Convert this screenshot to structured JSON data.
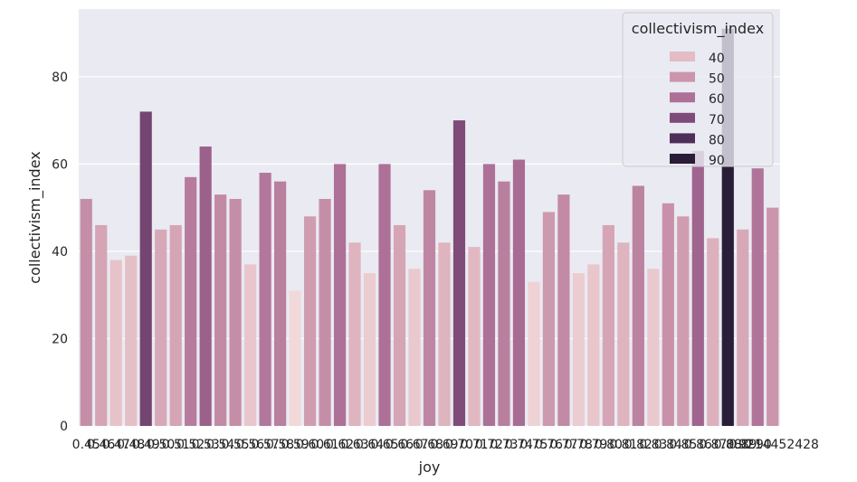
{
  "chart_data": {
    "type": "bar",
    "xlabel": "joy",
    "ylabel": "collectivism_index",
    "ylim": [
      0,
      95.5
    ],
    "yticks": [
      0,
      20,
      40,
      60,
      80
    ],
    "grid": true,
    "legend": {
      "title": "collectivism_index",
      "placement": "top-right",
      "entries": [
        "40",
        "50",
        "60",
        "70",
        "80",
        "90"
      ]
    },
    "colors": {
      "background": "#eaeaf2",
      "grid": "#ffffff",
      "hue_scale": [
        {
          "value": 30,
          "color": "#f2dcdc"
        },
        {
          "value": 40,
          "color": "#e3bcc4"
        },
        {
          "value": 50,
          "color": "#cb95ab"
        },
        {
          "value": 60,
          "color": "#ad7097"
        },
        {
          "value": 70,
          "color": "#7f4b78"
        },
        {
          "value": 80,
          "color": "#4d2f58"
        },
        {
          "value": 90,
          "color": "#2a1d38"
        }
      ]
    },
    "values": [
      52,
      46,
      38,
      39,
      72,
      45,
      46,
      57,
      64,
      53,
      52,
      37,
      58,
      56,
      31,
      48,
      52,
      60,
      42,
      35,
      60,
      46,
      36,
      54,
      42,
      70,
      41,
      60,
      56,
      61,
      33,
      49,
      53,
      35,
      37,
      46,
      42,
      55,
      36,
      51,
      48,
      63,
      43,
      91,
      45,
      59,
      50
    ],
    "categories": [
      "0.45",
      "0.46",
      "0.47",
      "0.48",
      "0.49",
      "0.50",
      "0.51",
      "0.52",
      "0.53",
      "0.54",
      "0.55",
      "0.56",
      "0.57",
      "0.58",
      "0.59",
      "0.60",
      "0.61",
      "0.62",
      "0.63",
      "0.64",
      "0.65",
      "0.66",
      "0.67",
      "0.68",
      "0.69",
      "0.70",
      "0.71",
      "0.72",
      "0.73",
      "0.74",
      "0.75",
      "0.76",
      "0.77",
      "0.78",
      "0.79",
      "0.80",
      "0.81",
      "0.82",
      "0.83",
      "0.84",
      "0.85",
      "0.86",
      "0.87",
      "0.88",
      "0.89",
      "0.90",
      "0.9214452428"
    ]
  }
}
